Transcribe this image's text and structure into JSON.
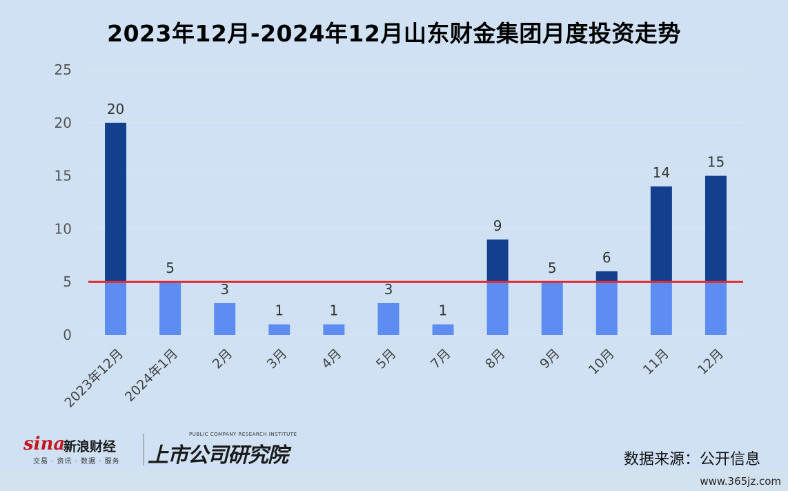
{
  "title": "2023年12月-2024年12月山东财金集团月度投资走势",
  "chart_data": {
    "type": "bar",
    "categories": [
      "2023年12月",
      "2024年1月",
      "2月",
      "3月",
      "4月",
      "5月",
      "7月",
      "8月",
      "9月",
      "10月",
      "11月",
      "12月"
    ],
    "values": [
      20,
      5,
      3,
      1,
      1,
      3,
      1,
      9,
      5,
      6,
      14,
      15
    ],
    "ylim": [
      0,
      25
    ],
    "yticks": [
      0,
      5,
      10,
      15,
      20,
      25
    ],
    "reference_line": 5,
    "grid": true,
    "colors": {
      "above_reference": "#123f8e",
      "below_reference": "#5e8df2",
      "reference_line": "#e8262d",
      "gridline": "#dde6ee",
      "background": "#cfe1f2"
    }
  },
  "footer": {
    "sina_word": "sina",
    "sina_name": "新浪财经",
    "sina_sub": "交易 · 资讯 · 数据 · 服务",
    "inst_en": "PUBLIC COMPANY RESEARCH INSTITUTE",
    "inst_cn": "上市公司研究院",
    "source": "数据来源：公开信息",
    "watermark": "www.365jz.com"
  }
}
